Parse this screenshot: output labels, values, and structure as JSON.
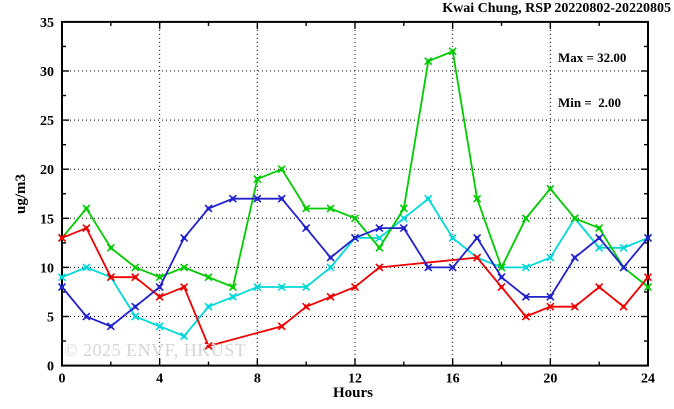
{
  "title": "Kwai Chung, RSP 20220802-20220805",
  "annotation": {
    "max_label": "Max = 32.00",
    "min_label": "Min =  2.00"
  },
  "watermark": "© 2025 ENVF, HKUST",
  "chart_data": {
    "type": "line",
    "title": "Kwai Chung, RSP 20220802-20220805",
    "xlabel": "Hours",
    "ylabel": "ug/m3",
    "xlim": [
      0,
      24
    ],
    "ylim": [
      0,
      35
    ],
    "x_major_ticks": [
      0,
      4,
      8,
      12,
      16,
      20,
      24
    ],
    "x_minor_step": 2,
    "y_major_ticks": [
      0,
      5,
      10,
      15,
      20,
      25,
      30,
      35
    ],
    "y_minor_step": 2.5,
    "grid": "dotted black gridlines at major ticks, boxed frame, mirrored inward ticks",
    "legend": "none shown",
    "x": [
      0,
      1,
      2,
      3,
      4,
      5,
      6,
      7,
      8,
      9,
      10,
      11,
      12,
      13,
      14,
      15,
      16,
      17,
      18,
      19,
      20,
      21,
      22,
      23,
      24
    ],
    "series": [
      {
        "name": "cyan",
        "color": "#00d9d9",
        "values": [
          9,
          10,
          9,
          5,
          4,
          3,
          6,
          7,
          8,
          8,
          8,
          10,
          13,
          13,
          15,
          17,
          13,
          11,
          10,
          10,
          11,
          15,
          12,
          12,
          13
        ]
      },
      {
        "name": "green",
        "color": "#00cc00",
        "values": [
          13,
          16,
          12,
          10,
          9,
          10,
          9,
          8,
          19,
          20,
          16,
          16,
          15,
          12,
          16,
          31,
          32,
          17,
          10,
          15,
          18,
          15,
          14,
          10,
          8
        ]
      },
      {
        "name": "red",
        "color": "#ee0000",
        "values": [
          13,
          14,
          9,
          9,
          7,
          8,
          2,
          null,
          null,
          4,
          6,
          7,
          8,
          10,
          null,
          null,
          null,
          11,
          8,
          5,
          6,
          6,
          8,
          6,
          9
        ]
      },
      {
        "name": "blue",
        "color": "#2222cc",
        "values": [
          8,
          5,
          4,
          6,
          8,
          13,
          16,
          17,
          17,
          17,
          14,
          11,
          13,
          14,
          14,
          10,
          10,
          13,
          9,
          7,
          7,
          11,
          13,
          10,
          13
        ]
      }
    ],
    "stats": {
      "max": 32.0,
      "min": 2.0
    }
  }
}
